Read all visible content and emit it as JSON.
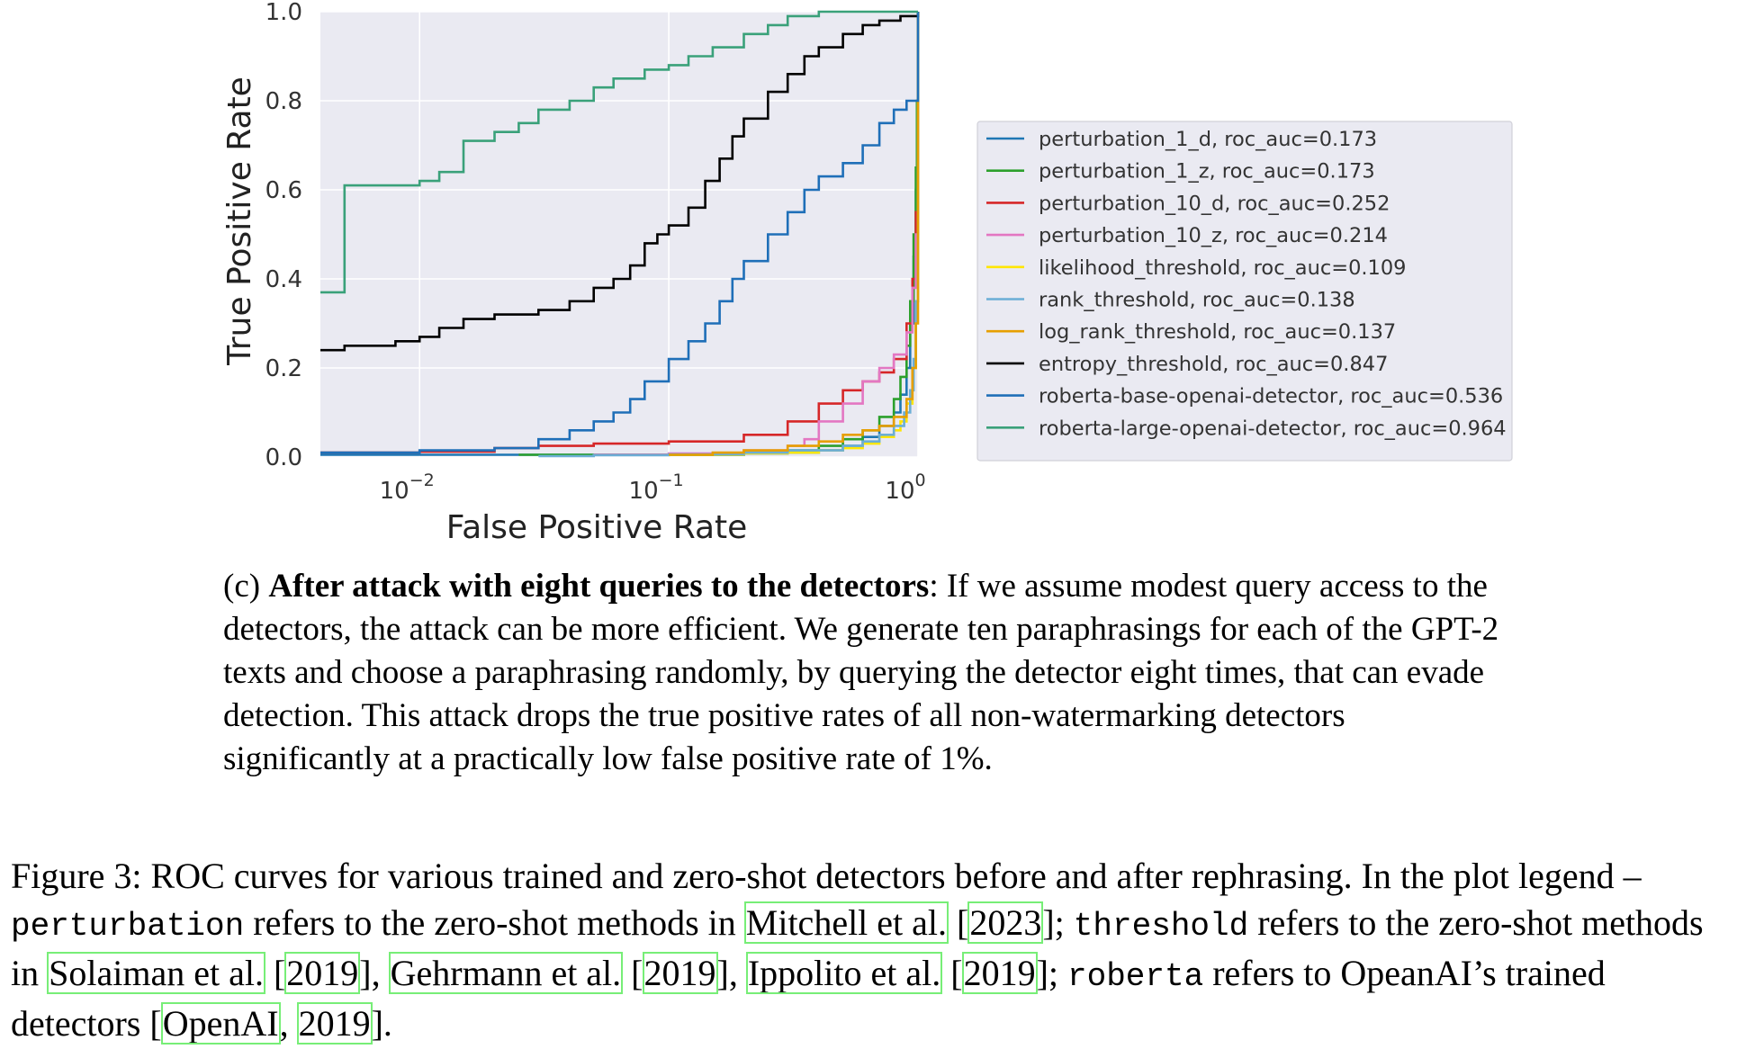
{
  "chart_data": {
    "type": "line",
    "xscale": "log",
    "xlim": [
      0.004,
      1.0
    ],
    "ylim": [
      0.0,
      1.0
    ],
    "xlabel": "False Positive Rate",
    "ylabel": "True Positive Rate",
    "xticks": [
      {
        "value": 0.01,
        "base": "10",
        "exp": "−2"
      },
      {
        "value": 0.1,
        "base": "10",
        "exp": "−1"
      },
      {
        "value": 1.0,
        "base": "10",
        "exp": "0"
      }
    ],
    "yticks": [
      {
        "value": 0.0,
        "label": "0.0"
      },
      {
        "value": 0.2,
        "label": "0.2"
      },
      {
        "value": 0.4,
        "label": "0.4"
      },
      {
        "value": 0.6,
        "label": "0.6"
      },
      {
        "value": 0.8,
        "label": "0.8"
      },
      {
        "value": 1.0,
        "label": "1.0"
      }
    ],
    "grid": true,
    "legend_position": "right",
    "series": [
      {
        "name": "perturbation_1_d, roc_auc=0.173",
        "color": "#1f77b4",
        "points": [
          [
            0.004,
            0.005
          ],
          [
            0.02,
            0.005
          ],
          [
            0.05,
            0.005
          ],
          [
            0.1,
            0.005
          ],
          [
            0.2,
            0.008
          ],
          [
            0.3,
            0.01
          ],
          [
            0.4,
            0.015
          ],
          [
            0.5,
            0.025
          ],
          [
            0.6,
            0.045
          ],
          [
            0.7,
            0.07
          ],
          [
            0.8,
            0.1
          ],
          [
            0.85,
            0.14
          ],
          [
            0.9,
            0.2
          ],
          [
            0.93,
            0.3
          ],
          [
            0.96,
            0.45
          ],
          [
            0.98,
            0.6
          ],
          [
            0.99,
            0.75
          ],
          [
            1.0,
            0.9
          ],
          [
            1.0,
            1.0
          ]
        ]
      },
      {
        "name": "perturbation_1_z, roc_auc=0.173",
        "color": "#2ca02c",
        "points": [
          [
            0.025,
            0.005
          ],
          [
            0.05,
            0.005
          ],
          [
            0.1,
            0.005
          ],
          [
            0.2,
            0.01
          ],
          [
            0.3,
            0.015
          ],
          [
            0.4,
            0.025
          ],
          [
            0.5,
            0.04
          ],
          [
            0.6,
            0.06
          ],
          [
            0.7,
            0.09
          ],
          [
            0.8,
            0.13
          ],
          [
            0.85,
            0.18
          ],
          [
            0.9,
            0.25
          ],
          [
            0.93,
            0.35
          ],
          [
            0.96,
            0.5
          ],
          [
            0.98,
            0.65
          ],
          [
            0.99,
            0.8
          ],
          [
            1.0,
            0.92
          ],
          [
            1.0,
            1.0
          ]
        ]
      },
      {
        "name": "perturbation_10_d, roc_auc=0.252",
        "color": "#d62728",
        "points": [
          [
            0.004,
            0.01
          ],
          [
            0.01,
            0.012
          ],
          [
            0.02,
            0.02
          ],
          [
            0.03,
            0.025
          ],
          [
            0.05,
            0.03
          ],
          [
            0.1,
            0.035
          ],
          [
            0.2,
            0.05
          ],
          [
            0.3,
            0.08
          ],
          [
            0.4,
            0.12
          ],
          [
            0.5,
            0.15
          ],
          [
            0.6,
            0.17
          ],
          [
            0.7,
            0.19
          ],
          [
            0.8,
            0.22
          ],
          [
            0.9,
            0.3
          ],
          [
            0.95,
            0.4
          ],
          [
            0.98,
            0.55
          ],
          [
            1.0,
            0.8
          ],
          [
            1.0,
            1.0
          ]
        ]
      },
      {
        "name": "perturbation_10_z, roc_auc=0.214",
        "color": "#e377c2",
        "points": [
          [
            0.05,
            0.005
          ],
          [
            0.1,
            0.008
          ],
          [
            0.2,
            0.015
          ],
          [
            0.3,
            0.025
          ],
          [
            0.35,
            0.04
          ],
          [
            0.4,
            0.08
          ],
          [
            0.5,
            0.12
          ],
          [
            0.6,
            0.17
          ],
          [
            0.7,
            0.2
          ],
          [
            0.8,
            0.23
          ],
          [
            0.9,
            0.28
          ],
          [
            0.95,
            0.38
          ],
          [
            0.98,
            0.5
          ],
          [
            1.0,
            0.75
          ],
          [
            1.0,
            1.0
          ]
        ]
      },
      {
        "name": "likelihood_threshold, roc_auc=0.109",
        "color": "#ffe600",
        "points": [
          [
            0.1,
            0.005
          ],
          [
            0.2,
            0.008
          ],
          [
            0.3,
            0.01
          ],
          [
            0.4,
            0.015
          ],
          [
            0.5,
            0.02
          ],
          [
            0.6,
            0.03
          ],
          [
            0.7,
            0.045
          ],
          [
            0.8,
            0.06
          ],
          [
            0.85,
            0.08
          ],
          [
            0.9,
            0.12
          ],
          [
            0.95,
            0.2
          ],
          [
            0.98,
            0.35
          ],
          [
            1.0,
            0.55
          ],
          [
            1.0,
            1.0
          ]
        ]
      },
      {
        "name": "rank_threshold, roc_auc=0.138",
        "color": "#6baed6",
        "points": [
          [
            0.03,
            0.002
          ],
          [
            0.05,
            0.004
          ],
          [
            0.1,
            0.006
          ],
          [
            0.2,
            0.01
          ],
          [
            0.3,
            0.015
          ],
          [
            0.5,
            0.025
          ],
          [
            0.6,
            0.035
          ],
          [
            0.7,
            0.05
          ],
          [
            0.8,
            0.07
          ],
          [
            0.88,
            0.1
          ],
          [
            0.93,
            0.15
          ],
          [
            0.96,
            0.22
          ],
          [
            0.98,
            0.35
          ],
          [
            1.0,
            0.6
          ],
          [
            1.0,
            1.0
          ]
        ]
      },
      {
        "name": "log_rank_threshold, roc_auc=0.137",
        "color": "#e69f00",
        "points": [
          [
            0.1,
            0.005
          ],
          [
            0.15,
            0.01
          ],
          [
            0.2,
            0.015
          ],
          [
            0.3,
            0.025
          ],
          [
            0.4,
            0.035
          ],
          [
            0.5,
            0.05
          ],
          [
            0.6,
            0.06
          ],
          [
            0.7,
            0.07
          ],
          [
            0.8,
            0.09
          ],
          [
            0.9,
            0.13
          ],
          [
            0.95,
            0.2
          ],
          [
            0.98,
            0.3
          ],
          [
            1.0,
            0.55
          ],
          [
            1.0,
            1.0
          ]
        ]
      },
      {
        "name": "entropy_threshold, roc_auc=0.847",
        "color": "#000000",
        "points": [
          [
            0.004,
            0.24
          ],
          [
            0.005,
            0.25
          ],
          [
            0.008,
            0.26
          ],
          [
            0.01,
            0.27
          ],
          [
            0.012,
            0.29
          ],
          [
            0.015,
            0.31
          ],
          [
            0.02,
            0.32
          ],
          [
            0.03,
            0.33
          ],
          [
            0.04,
            0.35
          ],
          [
            0.05,
            0.38
          ],
          [
            0.06,
            0.4
          ],
          [
            0.07,
            0.43
          ],
          [
            0.08,
            0.48
          ],
          [
            0.09,
            0.5
          ],
          [
            0.1,
            0.52
          ],
          [
            0.12,
            0.56
          ],
          [
            0.14,
            0.62
          ],
          [
            0.16,
            0.67
          ],
          [
            0.18,
            0.72
          ],
          [
            0.2,
            0.76
          ],
          [
            0.25,
            0.82
          ],
          [
            0.3,
            0.86
          ],
          [
            0.35,
            0.9
          ],
          [
            0.4,
            0.92
          ],
          [
            0.5,
            0.95
          ],
          [
            0.6,
            0.97
          ],
          [
            0.7,
            0.98
          ],
          [
            0.85,
            0.99
          ],
          [
            1.0,
            1.0
          ]
        ]
      },
      {
        "name": "roberta-base-openai-detector, roc_auc=0.536",
        "color": "#1f6fb8",
        "points": [
          [
            0.004,
            0.01
          ],
          [
            0.01,
            0.015
          ],
          [
            0.02,
            0.02
          ],
          [
            0.03,
            0.04
          ],
          [
            0.04,
            0.06
          ],
          [
            0.05,
            0.08
          ],
          [
            0.06,
            0.1
          ],
          [
            0.07,
            0.13
          ],
          [
            0.08,
            0.17
          ],
          [
            0.1,
            0.22
          ],
          [
            0.12,
            0.26
          ],
          [
            0.14,
            0.3
          ],
          [
            0.16,
            0.35
          ],
          [
            0.18,
            0.4
          ],
          [
            0.2,
            0.44
          ],
          [
            0.25,
            0.5
          ],
          [
            0.3,
            0.55
          ],
          [
            0.35,
            0.6
          ],
          [
            0.4,
            0.63
          ],
          [
            0.5,
            0.66
          ],
          [
            0.6,
            0.7
          ],
          [
            0.7,
            0.75
          ],
          [
            0.8,
            0.78
          ],
          [
            0.9,
            0.8
          ],
          [
            1.0,
            0.95
          ],
          [
            1.0,
            1.0
          ]
        ]
      },
      {
        "name": "roberta-large-openai-detector, roc_auc=0.964",
        "color": "#3aa17a",
        "points": [
          [
            0.004,
            0.37
          ],
          [
            0.005,
            0.37
          ],
          [
            0.005,
            0.61
          ],
          [
            0.008,
            0.61
          ],
          [
            0.01,
            0.62
          ],
          [
            0.012,
            0.64
          ],
          [
            0.015,
            0.71
          ],
          [
            0.02,
            0.73
          ],
          [
            0.025,
            0.75
          ],
          [
            0.03,
            0.78
          ],
          [
            0.04,
            0.8
          ],
          [
            0.05,
            0.83
          ],
          [
            0.06,
            0.85
          ],
          [
            0.08,
            0.87
          ],
          [
            0.1,
            0.88
          ],
          [
            0.12,
            0.9
          ],
          [
            0.15,
            0.92
          ],
          [
            0.2,
            0.95
          ],
          [
            0.25,
            0.97
          ],
          [
            0.3,
            0.99
          ],
          [
            0.4,
            1.0
          ],
          [
            0.6,
            1.0
          ],
          [
            1.0,
            1.0
          ]
        ]
      }
    ]
  },
  "subcaption": {
    "label": "(c)",
    "bold": "After attack with eight queries to the detectors",
    "text": ": If we assume modest query access to the detectors, the attack can be more efficient. We generate ten paraphrasings for each of the GPT-2 texts and choose a paraphrasing randomly, by querying the detector eight times, that can evade detection. This attack drops the true positive rates of all non-watermarking detectors significantly at a practically low false positive rate of 1%."
  },
  "caption": {
    "p1": "Figure 3: ROC curves for various trained and zero-shot detectors before and after rephrasing. In the plot legend – ",
    "m1": "perturbation",
    "p2": " refers to the zero-shot methods in ",
    "c1": "Mitchell et al.",
    "s1": " [",
    "c2": "2023",
    "s2": "]; ",
    "m2": "threshold",
    "p3": " refers to the zero-shot methods in ",
    "c3": "Solaiman et al.",
    "s3": " [",
    "c4": "2019",
    "s4": "], ",
    "c5": "Gehrmann et al.",
    "s5": " [",
    "c6": "2019",
    "s6": "], ",
    "c7": "Ippolito et al.",
    "s7": " [",
    "c8": "2019",
    "s8": "]; ",
    "m3": "roberta",
    "p4": " refers to OpeanAI’s trained detectors [",
    "c9": "OpenAI",
    "s9": ", ",
    "c10": "2019",
    "s10": "]."
  }
}
